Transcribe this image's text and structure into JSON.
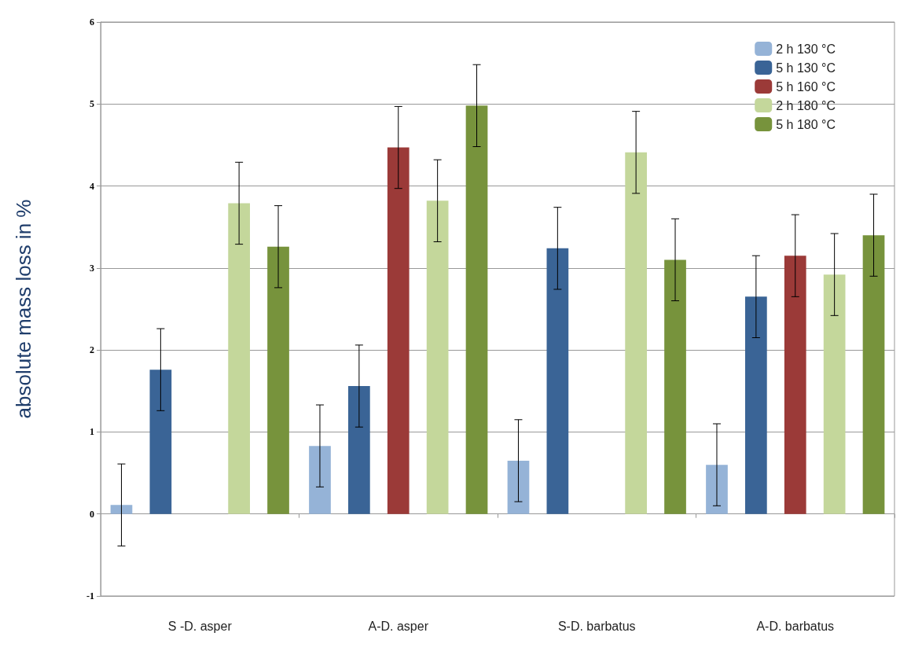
{
  "chart_data": {
    "type": "bar",
    "ylabel": "absolute mass loss in %",
    "categories": [
      "S -D. asper",
      "A-D. asper",
      "S-D. barbatus",
      "A-D. barbatus"
    ],
    "series": [
      {
        "name": "2 h 130 °C",
        "color": "#95b3d7",
        "values": [
          0.11,
          0.83,
          0.65,
          0.6
        ],
        "errors": [
          0.5,
          0.5,
          0.5,
          0.5
        ]
      },
      {
        "name": "5 h 130 °C",
        "color": "#3a6496",
        "values": [
          1.76,
          1.56,
          3.24,
          2.65
        ],
        "errors": [
          0.5,
          0.5,
          0.5,
          0.5
        ]
      },
      {
        "name": "5 h 160 °C",
        "color": "#9b3a38",
        "values": [
          null,
          4.47,
          null,
          3.15
        ],
        "errors": [
          null,
          0.5,
          null,
          0.5
        ]
      },
      {
        "name": "2 h 180 °C",
        "color": "#c4d79b",
        "values": [
          3.79,
          3.82,
          4.41,
          2.92
        ],
        "errors": [
          0.5,
          0.5,
          0.5,
          0.5
        ]
      },
      {
        "name": "5 h 180 °C",
        "color": "#77933c",
        "values": [
          3.26,
          4.98,
          3.1,
          3.4
        ],
        "errors": [
          0.5,
          0.5,
          0.5,
          0.5
        ]
      }
    ],
    "ylim": [
      -1,
      6
    ],
    "yticks": [
      -1,
      0,
      1,
      2,
      3,
      4,
      5,
      6
    ],
    "grid": "y",
    "legend": "top right"
  }
}
